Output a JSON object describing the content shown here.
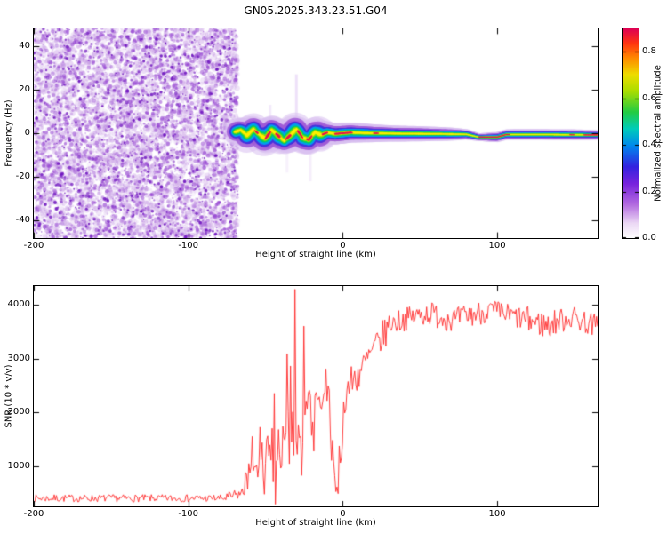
{
  "title": "GN05.2025.343.23.51.G04",
  "accent_colors": {
    "snr_line": "#ff2a2a",
    "axis": "#000000",
    "noise_violet": "#8a2be2"
  },
  "chart_data": [
    {
      "id": "spectrogram",
      "type": "heatmap",
      "xlabel": "Height of straight line (km)",
      "ylabel": "Frequency (Hz)",
      "xlim": [
        -200,
        165
      ],
      "ylim": [
        -48,
        48
      ],
      "x_ticks": [
        {
          "v": -200,
          "label": "-200"
        },
        {
          "v": -100,
          "label": "-100"
        },
        {
          "v": 0,
          "label": "0"
        },
        {
          "v": 100,
          "label": "100"
        }
      ],
      "y_ticks": [
        {
          "v": -40,
          "label": "-40"
        },
        {
          "v": -20,
          "label": "-20"
        },
        {
          "v": 0,
          "label": "0"
        },
        {
          "v": 20,
          "label": "20"
        },
        {
          "v": 40,
          "label": "40"
        }
      ],
      "colorbar": {
        "label": "Normalized spectral amplitude",
        "vmin": 0.0,
        "vmax": 0.9,
        "ticks": [
          {
            "v": 0.0,
            "label": "0.0"
          },
          {
            "v": 0.2,
            "label": "0.2"
          },
          {
            "v": 0.4,
            "label": "0.4"
          },
          {
            "v": 0.6,
            "label": "0.6"
          },
          {
            "v": 0.8,
            "label": "0.8"
          }
        ],
        "stops": [
          {
            "t": 0.0,
            "c": "#ffffff"
          },
          {
            "t": 0.07,
            "c": "#ecd9f5"
          },
          {
            "t": 0.16,
            "c": "#b36be0"
          },
          {
            "t": 0.26,
            "c": "#7722dd"
          },
          {
            "t": 0.34,
            "c": "#3322e0"
          },
          {
            "t": 0.44,
            "c": "#0088ee"
          },
          {
            "t": 0.52,
            "c": "#00ccbb"
          },
          {
            "t": 0.6,
            "c": "#22cc44"
          },
          {
            "t": 0.7,
            "c": "#aadd00"
          },
          {
            "t": 0.78,
            "c": "#eedd00"
          },
          {
            "t": 0.86,
            "c": "#ff8800"
          },
          {
            "t": 0.93,
            "c": "#ff3311"
          },
          {
            "t": 1.0,
            "c": "#dd0055"
          }
        ]
      },
      "noise_region": {
        "x": [
          -200,
          -68
        ],
        "freq": [
          -48,
          48
        ],
        "amplitude": [
          0.0,
          0.3
        ],
        "description": "broadband low-amplitude violet speckle noise filling the band before signal acquisition",
        "seed": 99
      },
      "signal_ridge": {
        "description": "narrow high-amplitude carrier near 0 Hz from about -70 km to the right edge; wavy and thick until ~0 km, thin and straight afterwards",
        "center_hz": [
          {
            "x": -70,
            "f": 0.5
          },
          {
            "x": -66,
            "f": 1.5
          },
          {
            "x": -62,
            "f": -1.0
          },
          {
            "x": -58,
            "f": 1.8
          },
          {
            "x": -54,
            "f": -0.5
          },
          {
            "x": -50,
            "f": -2.5
          },
          {
            "x": -46,
            "f": 1.5
          },
          {
            "x": -42,
            "f": -1.0
          },
          {
            "x": -38,
            "f": -3.5
          },
          {
            "x": -34,
            "f": -1.0
          },
          {
            "x": -30,
            "f": 2.0
          },
          {
            "x": -26,
            "f": -2.0
          },
          {
            "x": -22,
            "f": -3.0
          },
          {
            "x": -18,
            "f": 0.5
          },
          {
            "x": -14,
            "f": -0.8
          },
          {
            "x": -10,
            "f": 0.3
          },
          {
            "x": -5,
            "f": -0.3
          },
          {
            "x": 5,
            "f": 0.3
          },
          {
            "x": 20,
            "f": 0.0
          },
          {
            "x": 40,
            "f": -0.2
          },
          {
            "x": 60,
            "f": -0.3
          },
          {
            "x": 80,
            "f": -0.5
          },
          {
            "x": 88,
            "f": -1.8
          },
          {
            "x": 100,
            "f": -1.8
          },
          {
            "x": 106,
            "f": -0.6
          },
          {
            "x": 130,
            "f": -0.6
          },
          {
            "x": 165,
            "f": -0.8
          }
        ],
        "width_profile": [
          {
            "x": -70,
            "w": 0.9
          },
          {
            "x": -64,
            "w": 1.25
          },
          {
            "x": -55,
            "w": 1.15
          },
          {
            "x": -48,
            "w": 1.35
          },
          {
            "x": -40,
            "w": 1.1
          },
          {
            "x": -33,
            "w": 1.3
          },
          {
            "x": -25,
            "w": 1.15
          },
          {
            "x": -18,
            "w": 1.25
          },
          {
            "x": -10,
            "w": 1.0
          },
          {
            "x": 0,
            "w": 0.95
          },
          {
            "x": 15,
            "w": 0.85
          },
          {
            "x": 30,
            "w": 0.75
          },
          {
            "x": 50,
            "w": 0.7
          },
          {
            "x": 70,
            "w": 0.6
          },
          {
            "x": 82,
            "w": 0.45
          },
          {
            "x": 88,
            "w": 0.35
          },
          {
            "x": 95,
            "w": 0.45
          },
          {
            "x": 110,
            "w": 0.5
          },
          {
            "x": 130,
            "w": 0.5
          },
          {
            "x": 150,
            "w": 0.5
          },
          {
            "x": 165,
            "w": 0.45
          }
        ],
        "layers": [
          {
            "color": "rgba(216,191,240,0.55)",
            "width_hz": 10.0
          },
          {
            "color": "rgba(160,90,215,0.85)",
            "width_hz": 7.0
          },
          {
            "color": "#4433dd",
            "width_hz": 5.0
          },
          {
            "color": "#00a0ee",
            "width_hz": 3.8
          },
          {
            "color": "#00cc66",
            "width_hz": 2.6
          },
          {
            "color": "#99dd00",
            "width_hz": 1.6
          },
          {
            "color": "#ffee00",
            "width_hz": 0.9
          }
        ],
        "red_color": "#e8114b",
        "red_core_segments": [
          [
            -57,
            -55
          ],
          [
            -50,
            -47
          ],
          [
            -43,
            -41
          ],
          [
            -37,
            -34
          ],
          [
            -29,
            -26
          ],
          [
            -23,
            -20
          ],
          [
            -13,
            -10
          ],
          [
            -5,
            6
          ],
          [
            20,
            23
          ],
          [
            88,
            108
          ],
          [
            147,
            150
          ],
          [
            156,
            166
          ]
        ],
        "streaks": [
          {
            "x": -30,
            "f0": 3,
            "f1": 27,
            "a": 0.3
          },
          {
            "x": -47,
            "f0": 2,
            "f1": 13,
            "a": 0.22
          },
          {
            "x": -21,
            "f0": -22,
            "f1": -8,
            "a": 0.18
          },
          {
            "x": -36,
            "f0": -18,
            "f1": -6,
            "a": 0.15
          }
        ]
      }
    },
    {
      "id": "snr",
      "type": "line",
      "xlabel": "Height of straight line (km)",
      "ylabel": "SNR (10 * v/v)",
      "xlim": [
        -200,
        165
      ],
      "ylim": [
        250,
        4350
      ],
      "x_ticks": [
        {
          "v": -200,
          "label": "-200"
        },
        {
          "v": -100,
          "label": "-100"
        },
        {
          "v": 0,
          "label": "0"
        },
        {
          "v": 100,
          "label": "100"
        }
      ],
      "y_ticks": [
        {
          "v": 1000,
          "label": "1000"
        },
        {
          "v": 2000,
          "label": "2000"
        },
        {
          "v": 3000,
          "label": "3000"
        },
        {
          "v": 4000,
          "label": "4000"
        }
      ],
      "line_color": "#ff2a2a",
      "description": "flat noise floor ~400 until -70 km, violent spikes -65..0 km, rise to ~3800 by +30 km, noisy plateau 3500-4000 to right edge",
      "sample_step_km": 0.7,
      "seed": 7,
      "segments": [
        {
          "x0": -200,
          "x1": -75,
          "y0": 400,
          "y1": 400,
          "n": 70
        },
        {
          "x0": -75,
          "x1": -63,
          "y0": 400,
          "y1": 520,
          "n": 110
        },
        {
          "x0": -63,
          "x1": -55,
          "y0": 600,
          "y1": 1000,
          "n": 450,
          "spiky": true
        },
        {
          "x0": -55,
          "x1": -45,
          "y0": 1000,
          "y1": 1300,
          "n": 900,
          "spiky": true
        },
        {
          "x0": -45,
          "x1": -36,
          "y0": 1300,
          "y1": 1600,
          "n": 1200,
          "spiky": true
        },
        {
          "x0": -36,
          "x1": -28,
          "y0": 1700,
          "y1": 1900,
          "n": 1500,
          "spiky": true
        },
        {
          "x0": -28,
          "x1": -18,
          "y0": 1900,
          "y1": 2100,
          "n": 1100,
          "spiky": true
        },
        {
          "x0": -18,
          "x1": -8,
          "y0": 2100,
          "y1": 2300,
          "n": 700,
          "spiky": true
        },
        {
          "x0": -8,
          "x1": -3,
          "y0": 1500,
          "y1": 500,
          "n": 600,
          "spiky": true
        },
        {
          "x0": -3,
          "x1": 2,
          "y0": 500,
          "y1": 2400,
          "n": 500,
          "spiky": true
        },
        {
          "x0": 2,
          "x1": 12,
          "y0": 2400,
          "y1": 2800,
          "n": 350
        },
        {
          "x0": 12,
          "x1": 30,
          "y0": 2800,
          "y1": 3600,
          "n": 300
        },
        {
          "x0": 30,
          "x1": 55,
          "y0": 3650,
          "y1": 3850,
          "n": 220
        },
        {
          "x0": 55,
          "x1": 75,
          "y0": 3850,
          "y1": 3700,
          "n": 240
        },
        {
          "x0": 75,
          "x1": 95,
          "y0": 3750,
          "y1": 3900,
          "n": 230
        },
        {
          "x0": 95,
          "x1": 115,
          "y0": 3900,
          "y1": 3750,
          "n": 220
        },
        {
          "x0": 115,
          "x1": 135,
          "y0": 3750,
          "y1": 3600,
          "n": 260
        },
        {
          "x0": 135,
          "x1": 150,
          "y0": 3650,
          "y1": 3800,
          "n": 240
        },
        {
          "x0": 150,
          "x1": 165,
          "y0": 3750,
          "y1": 3600,
          "n": 230
        }
      ]
    }
  ]
}
